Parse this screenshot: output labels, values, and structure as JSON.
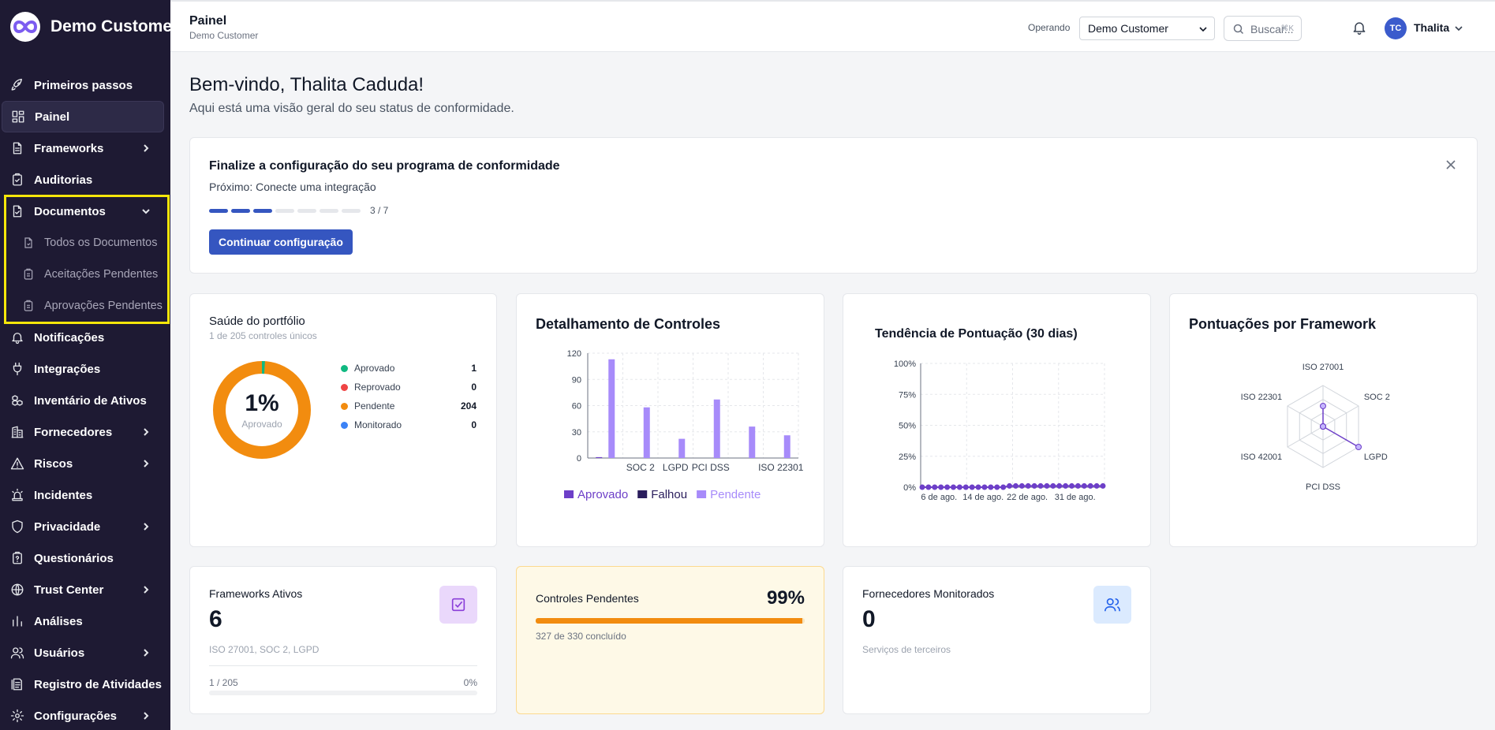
{
  "sidebar": {
    "brand": "Demo Customer",
    "items": [
      {
        "label": "Primeiros passos",
        "icon": "rocket-icon"
      },
      {
        "label": "Painel",
        "icon": "dashboard-icon",
        "active": true
      },
      {
        "label": "Frameworks",
        "icon": "document-icon",
        "chevron": "right"
      },
      {
        "label": "Auditorias",
        "icon": "clipboard-check-icon"
      },
      {
        "label": "Documentos",
        "icon": "file-check-icon",
        "chevron": "down",
        "sub": [
          "Todos os Documentos",
          "Aceitações Pendentes",
          "Aprovações Pendentes"
        ]
      },
      {
        "label": "Notificações",
        "icon": "bell-icon"
      },
      {
        "label": "Integrações",
        "icon": "plug-icon"
      },
      {
        "label": "Inventário de Ativos",
        "icon": "boxes-icon"
      },
      {
        "label": "Fornecedores",
        "icon": "building-icon",
        "chevron": "right"
      },
      {
        "label": "Riscos",
        "icon": "warning-icon",
        "chevron": "right"
      },
      {
        "label": "Incidentes",
        "icon": "siren-icon"
      },
      {
        "label": "Privacidade",
        "icon": "shield-icon",
        "chevron": "right"
      },
      {
        "label": "Questionários",
        "icon": "questionnaire-icon"
      },
      {
        "label": "Trust Center",
        "icon": "globe-icon",
        "chevron": "right"
      },
      {
        "label": "Análises",
        "icon": "bar-chart-icon"
      },
      {
        "label": "Usuários",
        "icon": "users-icon",
        "chevron": "right"
      },
      {
        "label": "Registro de Atividades",
        "icon": "log-icon"
      },
      {
        "label": "Configurações",
        "icon": "gear-icon",
        "chevron": "right"
      }
    ]
  },
  "header": {
    "title": "Painel",
    "subtitle": "Demo Customer",
    "operating_label": "Operando",
    "operating_value": "Demo Customer",
    "search_placeholder": "Buscar...",
    "search_shortcut": "⌘K",
    "user_initials": "TC",
    "user_name": "Thalita"
  },
  "welcome": {
    "title": "Bem-vindo, Thalita Caduda!",
    "subtitle": "Aqui está uma visão geral do seu status de conformidade."
  },
  "setup": {
    "title": "Finalize a configuração do seu programa de conformidade",
    "next": "Próximo: Conecte uma integração",
    "progress_done": 3,
    "progress_total": 7,
    "progress_text": "3 / 7",
    "button": "Continuar configuração"
  },
  "portfolio": {
    "title": "Saúde do portfólio",
    "subtitle": "1 de 205 controles únicos",
    "percent": "1%",
    "percent_label": "Aprovado",
    "legend": [
      {
        "label": "Aprovado",
        "value": "1",
        "color": "#10b981"
      },
      {
        "label": "Reprovado",
        "value": "0",
        "color": "#ef4444"
      },
      {
        "label": "Pendente",
        "value": "204",
        "color": "#f28c0f"
      },
      {
        "label": "Monitorado",
        "value": "0",
        "color": "#3b82f6"
      }
    ]
  },
  "controls_chart": {
    "title": "Detalhamento de Controles"
  },
  "trend_chart": {
    "title": "Tendência de Pontuação (30 dias)"
  },
  "radar_chart": {
    "title": "Pontuações por Framework"
  },
  "chart_data": [
    {
      "type": "bar",
      "title": "Detalhamento de Controles",
      "categories": [
        "ISO 27001",
        "SOC 2",
        "LGPD",
        "PCI DSS",
        "ISO 42001",
        "ISO 22301"
      ],
      "tick_labels_shown": [
        "SOC 2",
        "LGPD",
        "PCI DSS",
        "ISO 22301"
      ],
      "ylim": [
        0,
        120
      ],
      "yticks": [
        0,
        30,
        60,
        90,
        120
      ],
      "series": [
        {
          "name": "Aprovado",
          "color": "#6d3fc8",
          "values": [
            1,
            0,
            0,
            0,
            0,
            0
          ]
        },
        {
          "name": "Falhou",
          "color": "#2a1d5c",
          "values": [
            0,
            0,
            0,
            0,
            0,
            0
          ]
        },
        {
          "name": "Pendente",
          "color": "#a78bfa",
          "values": [
            113,
            58,
            22,
            67,
            36,
            26
          ]
        }
      ]
    },
    {
      "type": "line",
      "title": "Tendência de Pontuação (30 dias)",
      "x_ticks": [
        "6 de ago.",
        "14 de ago.",
        "22 de ago.",
        "31 de ago."
      ],
      "yticks": [
        "0%",
        "25%",
        "50%",
        "75%",
        "100%"
      ],
      "ylim": [
        0,
        100
      ],
      "points": 30,
      "values": [
        0,
        0,
        0,
        0,
        0,
        0,
        0,
        0,
        0,
        0,
        0,
        0,
        0,
        0,
        1,
        1,
        1,
        1,
        1,
        1,
        1,
        1,
        1,
        1,
        1,
        1,
        1,
        1,
        1,
        1
      ],
      "color": "#6d3fc8"
    },
    {
      "type": "radar",
      "title": "Pontuações por Framework",
      "axes": [
        "ISO 27001",
        "SOC 2",
        "LGPD",
        "PCI DSS",
        "ISO 42001",
        "ISO 22301"
      ],
      "values": [
        50,
        0,
        100,
        0,
        0,
        0
      ],
      "max": 100,
      "color": "#6d3fc8"
    }
  ],
  "kpis": {
    "frameworks": {
      "title": "Frameworks Ativos",
      "value": "6",
      "sub": "ISO 27001, SOC 2, LGPD",
      "foot_left": "1 / 205",
      "foot_right": "0%"
    },
    "pending": {
      "title": "Controles Pendentes",
      "value": "99%",
      "fill": 0.99,
      "sub": "327 de 330 concluído"
    },
    "vendors": {
      "title": "Fornecedores Monitorados",
      "value": "0",
      "sub": "Serviços de terceiros"
    }
  }
}
